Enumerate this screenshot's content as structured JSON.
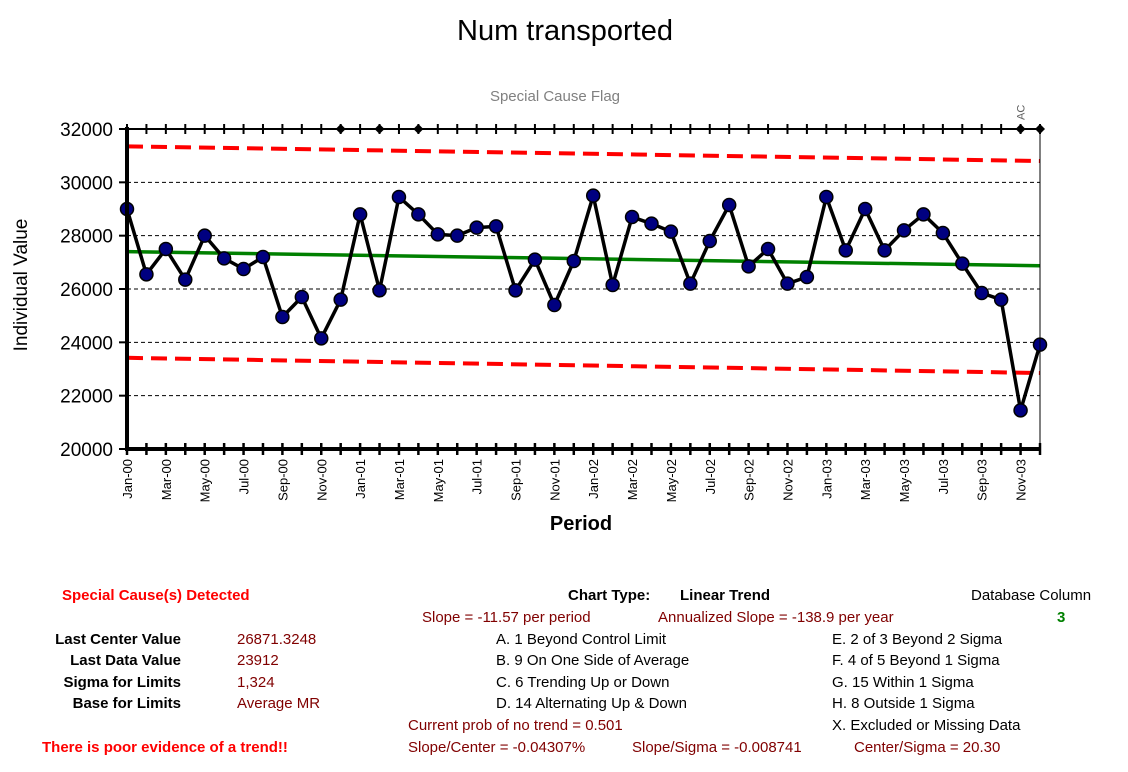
{
  "chart_data": {
    "type": "line",
    "title": "Num transported",
    "subtitle": "Special Cause Flag",
    "xlabel": "Period",
    "ylabel": "Individual Value",
    "ylim": [
      20000,
      32000
    ],
    "yticks": [
      20000,
      22000,
      24000,
      26000,
      28000,
      30000,
      32000
    ],
    "x": [
      "Jan-00",
      "Feb-00",
      "Mar-00",
      "Apr-00",
      "May-00",
      "Jun-00",
      "Jul-00",
      "Aug-00",
      "Sep-00",
      "Oct-00",
      "Nov-00",
      "Dec-00",
      "Jan-01",
      "Feb-01",
      "Mar-01",
      "Apr-01",
      "May-01",
      "Jun-01",
      "Jul-01",
      "Aug-01",
      "Sep-01",
      "Oct-01",
      "Nov-01",
      "Dec-01",
      "Jan-02",
      "Feb-02",
      "Mar-02",
      "Apr-02",
      "May-02",
      "Jun-02",
      "Jul-02",
      "Aug-02",
      "Sep-02",
      "Oct-02",
      "Nov-02",
      "Dec-02",
      "Jan-03",
      "Feb-03",
      "Mar-03",
      "Apr-03",
      "May-03",
      "Jun-03",
      "Jul-03",
      "Aug-03",
      "Sep-03",
      "Oct-03",
      "Nov-03",
      "Dec-03"
    ],
    "xtick_labels": [
      "Jan-00",
      "Mar-00",
      "May-00",
      "Jul-00",
      "Sep-00",
      "Nov-00",
      "Jan-01",
      "Mar-01",
      "May-01",
      "Jul-01",
      "Sep-01",
      "Nov-01",
      "Jan-02",
      "Mar-02",
      "May-02",
      "Jul-02",
      "Sep-02",
      "Nov-02",
      "Jan-03",
      "Mar-03",
      "May-03",
      "Jul-03",
      "Sep-03",
      "Nov-03"
    ],
    "series": [
      {
        "values": [
          29000,
          26550,
          27500,
          26350,
          28000,
          27150,
          26750,
          27200,
          24950,
          25700,
          24150,
          25600,
          28800,
          25950,
          29450,
          28800,
          28050,
          28000,
          28300,
          28350,
          25950,
          27100,
          25400,
          27050,
          29500,
          26150,
          28700,
          28450,
          28150,
          26200,
          27800,
          29150,
          26850,
          27500,
          26200,
          26450,
          29450,
          27450,
          29000,
          27450,
          28200,
          28800,
          28100,
          26950,
          25850,
          25600,
          21450,
          23912
        ]
      }
    ],
    "center_line": {
      "start": 27400,
      "end": 26871.3248
    },
    "ucl": {
      "start": 31350,
      "end": 30800
    },
    "lcl": {
      "start": 23420,
      "end": 22850
    },
    "flag_points": [
      11,
      13,
      15,
      46,
      47
    ],
    "flag_label": {
      "index": 46,
      "text": "AC"
    },
    "colors": {
      "data": "#000000",
      "marker": "#000080",
      "center": "#008000",
      "limits": "#ff0000",
      "grid": "#000000"
    }
  },
  "stats": {
    "special_causes": "Special Cause(s) Detected",
    "last_center_label": "Last Center Value",
    "last_center_value": "26871.3248",
    "last_data_label": "Last Data Value",
    "last_data_value": "23912",
    "sigma_label": "Sigma for Limits",
    "sigma_value": "1,324",
    "base_label": "Base for Limits",
    "base_value": "Average MR",
    "trend_warning": "There is poor evidence of a trend!!"
  },
  "info": {
    "chart_type_label": "Chart Type:",
    "chart_type_value": "Linear Trend",
    "slope": "Slope = -11.57 per period",
    "annualized": "Annualized Slope = -138.9 per year",
    "rules_left": [
      "A.  1 Beyond Control Limit",
      "B.  9 On One Side of Average",
      "C.  6 Trending Up or Down",
      "D.  14 Alternating  Up & Down"
    ],
    "rules_right": [
      "E.  2 of 3 Beyond 2 Sigma",
      "F.  4 of 5 Beyond 1 Sigma",
      "G.  15 Within 1 Sigma",
      "H.  8 Outside 1 Sigma",
      "X.  Excluded or Missing Data"
    ],
    "prob": "Current prob of no trend = 0.501",
    "slope_center": "Slope/Center = -0.04307%",
    "slope_sigma": "Slope/Sigma = -0.008741",
    "center_sigma": "Center/Sigma = 20.30",
    "db_column_label": "Database Column",
    "db_column_value": "3"
  }
}
